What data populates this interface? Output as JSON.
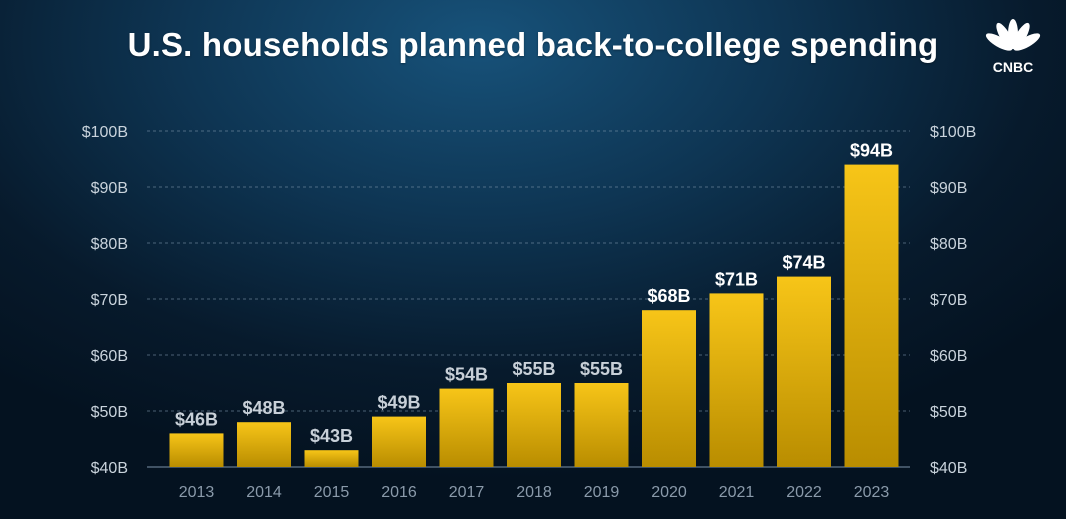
{
  "title": "U.S. households planned back-to-college spending",
  "logo_text": "CNBC",
  "colors": {
    "bar_top": "#f7c518",
    "bar_bottom": "#b98d00",
    "grid": "#7b93a8",
    "tick_label": "#c9d3dc",
    "year_label": "#8a9aaa",
    "value_label_high": "#ffffff",
    "value_label_low": "#c8d0d8"
  },
  "chart_data": {
    "type": "bar",
    "title": "U.S. households planned back-to-college spending",
    "categories": [
      "2013",
      "2014",
      "2015",
      "2016",
      "2017",
      "2018",
      "2019",
      "2020",
      "2021",
      "2022",
      "2023"
    ],
    "values": [
      46,
      48,
      43,
      49,
      54,
      55,
      55,
      68,
      71,
      74,
      94
    ],
    "data_labels": [
      "$46B",
      "$48B",
      "$43B",
      "$49B",
      "$54B",
      "$55B",
      "$55B",
      "$68B",
      "$71B",
      "$74B",
      "$94B"
    ],
    "unit": "billions USD",
    "ylim": [
      40,
      100
    ],
    "yticks": [
      40,
      50,
      60,
      70,
      80,
      90,
      100
    ],
    "ytick_labels": [
      "$40B",
      "$50B",
      "$60B",
      "$70B",
      "$80B",
      "$90B",
      "$100B"
    ],
    "y_axis_both_sides": true,
    "grid": "horizontal dashed",
    "legend": "none"
  }
}
